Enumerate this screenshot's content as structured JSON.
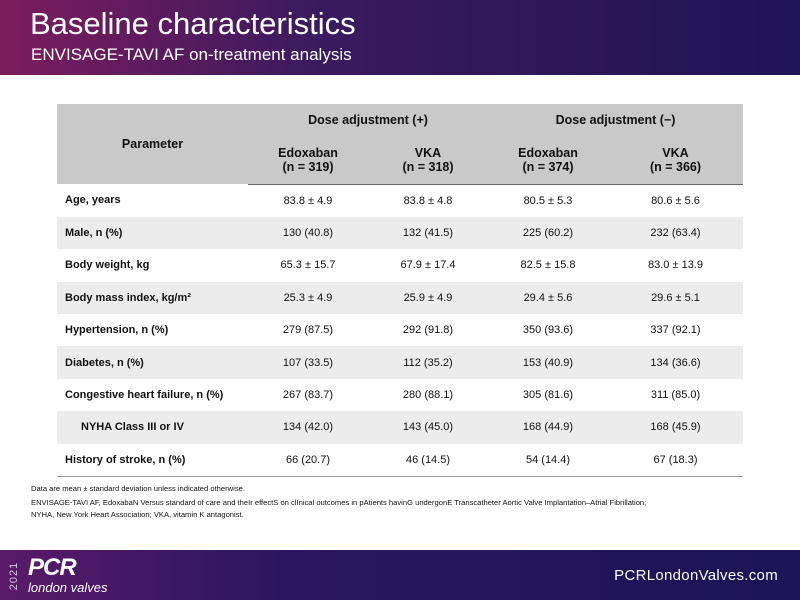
{
  "header": {
    "title": "Baseline characteristics",
    "subtitle": "ENVISAGE-TAVI AF on-treatment analysis"
  },
  "table": {
    "parameter_header": "Parameter",
    "groups": [
      "Dose adjustment (+)",
      "Dose adjustment (−)"
    ],
    "columns": [
      [
        "Edoxaban",
        "(n = 319)"
      ],
      [
        "VKA",
        "(n = 318)"
      ],
      [
        "Edoxaban",
        "(n = 374)"
      ],
      [
        "VKA",
        "(n = 366)"
      ]
    ],
    "rows": [
      [
        "Age, years",
        "83.8 ± 4.9",
        "83.8 ± 4.8",
        "80.5 ± 5.3",
        "80.6 ± 5.6"
      ],
      [
        "Male,  n (%)",
        "130 (40.8)",
        "132 (41.5)",
        "225 (60.2)",
        "232 (63.4)"
      ],
      [
        "Body weight, kg",
        "65.3 ± 15.7",
        "67.9 ± 17.4",
        "82.5 ± 15.8",
        "83.0 ± 13.9"
      ],
      [
        "Body mass index, kg/m²",
        "25.3 ± 4.9",
        "25.9 ± 4.9",
        "29.4 ± 5.6",
        "29.6 ± 5.1"
      ],
      [
        "Hypertension, n (%)",
        "279 (87.5)",
        "292 (91.8)",
        "350 (93.6)",
        "337 (92.1)"
      ],
      [
        "Diabetes, n (%)",
        "107 (33.5)",
        "112 (35.2)",
        "153 (40.9)",
        "134 (36.6)"
      ],
      [
        "Congestive heart failure, n (%)",
        "267 (83.7)",
        "280 (88.1)",
        "305 (81.6)",
        "311 (85.0)"
      ],
      [
        "NYHA Class  III  or IV",
        "134 (42.0)",
        "143 (45.0)",
        "168 (44.9)",
        "168 (45.9)"
      ],
      [
        "History of stroke, n (%)",
        "66 (20.7)",
        "46 (14.5)",
        "54 (14.4)",
        "67 (18.3)"
      ]
    ]
  },
  "footnotes": [
    "Data are mean ± standard deviation unless indicated otherwise.",
    "ENVISAGE-TAVI AF, EdoxabaN Versus standard of care and theIr effectS on clInical outcomes in pAtients havinG undergonE Transcatheter Aortic Valve Implantation–Atrial Fibrillation;",
    "NYHA, New York Heart Association; VKA, vitamin K antagonist."
  ],
  "footer": {
    "year": "2021",
    "logo": "PCR",
    "logo_sub": "london valves",
    "url": "PCRLondonValves.com"
  }
}
